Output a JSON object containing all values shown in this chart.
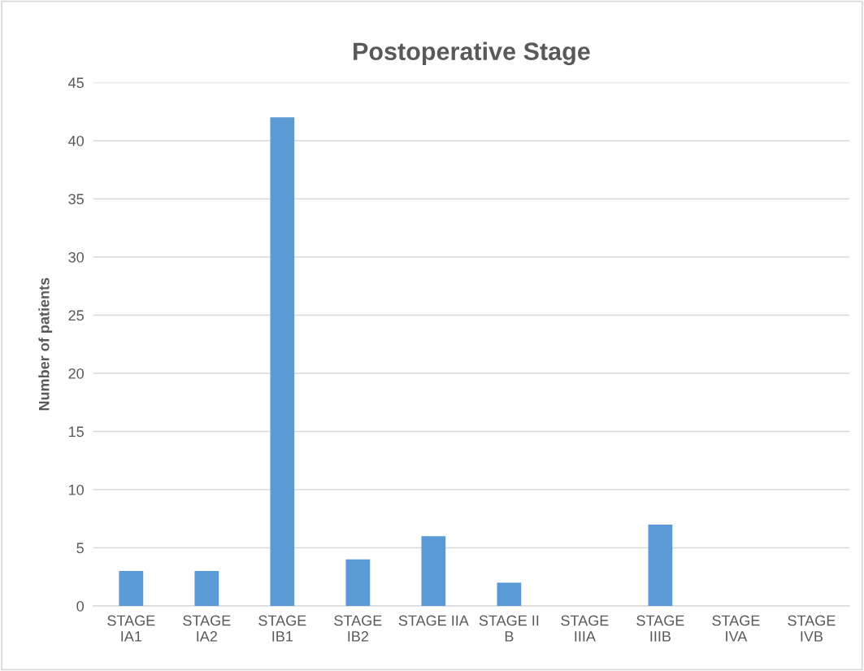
{
  "chart_data": {
    "type": "bar",
    "title": "Postoperative Stage",
    "ylabel": "Number of patients",
    "categories": [
      "STAGE\nIA1",
      "STAGE\nIA2",
      "STAGE\nIB1",
      "STAGE\nIB2",
      "STAGE IIA",
      "STAGE II\nB",
      "STAGE\nIIIA",
      "STAGE\nIIIB",
      "STAGE\nIVA",
      "STAGE\nIVB"
    ],
    "values": [
      3,
      3,
      42,
      4,
      6,
      2,
      0,
      7,
      0,
      0
    ],
    "color": "#5b9bd5",
    "ylim": [
      0,
      45
    ],
    "yticks": [
      0,
      5,
      10,
      15,
      20,
      25,
      30,
      35,
      40,
      45
    ],
    "grid": "y"
  }
}
